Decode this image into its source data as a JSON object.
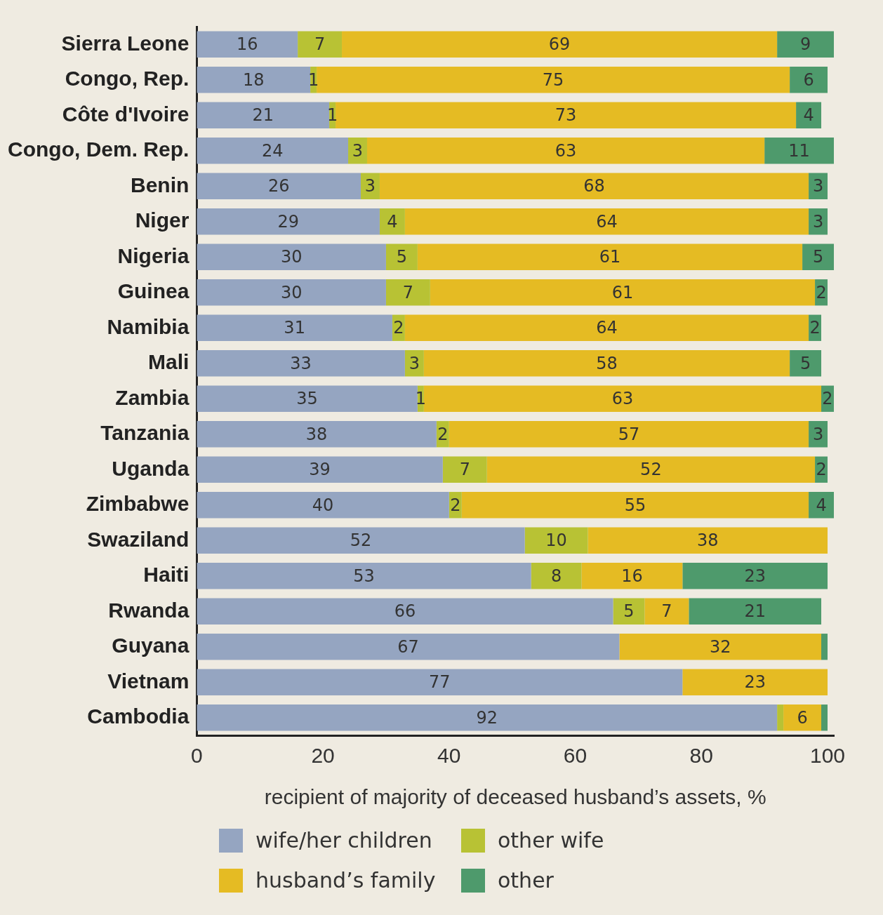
{
  "chart_data": {
    "type": "bar",
    "orientation": "horizontal",
    "stacked": true,
    "categories": [
      "Sierra Leone",
      "Congo, Rep.",
      "Côte d'Ivoire",
      "Congo, Dem. Rep.",
      "Benin",
      "Niger",
      "Nigeria",
      "Guinea",
      "Namibia",
      "Mali",
      "Zambia",
      "Tanzania",
      "Uganda",
      "Zimbabwe",
      "Swaziland",
      "Haiti",
      "Rwanda",
      "Guyana",
      "Vietnam",
      "Cambodia"
    ],
    "xlabel": "recipient of majority of deceased husband’s assets, %",
    "xlim": [
      0,
      101
    ],
    "xticks": [
      0,
      20,
      40,
      60,
      80,
      100
    ],
    "grid": false,
    "legend": "bottom",
    "series": [
      {
        "name": "wife/her children",
        "color": "#95a5c1",
        "values": [
          16,
          18,
          21,
          24,
          26,
          29,
          30,
          30,
          31,
          33,
          35,
          38,
          39,
          40,
          52,
          53,
          66,
          67,
          77,
          92
        ],
        "value_labels": [
          "16",
          "18",
          "21",
          "24",
          "26",
          "29",
          "30",
          "30",
          "31",
          "33",
          "35",
          "38",
          "39",
          "40",
          "52",
          "53",
          "66",
          "67",
          "77",
          "92"
        ]
      },
      {
        "name": "other wife",
        "color": "#b8c234",
        "values": [
          7,
          1,
          1,
          3,
          3,
          4,
          5,
          7,
          2,
          3,
          1,
          2,
          7,
          2,
          10,
          8,
          5,
          null,
          null,
          1
        ],
        "value_labels": [
          "7",
          "1",
          "1",
          "3",
          "3",
          "4",
          "5",
          "7",
          "2",
          "3",
          "1",
          "2",
          "7",
          "2",
          "10",
          "8",
          "5",
          null,
          null,
          null
        ]
      },
      {
        "name": "husband’s family",
        "color": "#e5bb23",
        "values": [
          69,
          75,
          73,
          63,
          68,
          64,
          61,
          61,
          64,
          58,
          63,
          57,
          52,
          55,
          38,
          16,
          7,
          32,
          23,
          6
        ],
        "value_labels": [
          "69",
          "75",
          "73",
          "63",
          "68",
          "64",
          "61",
          "61",
          "64",
          "58",
          "63",
          "57",
          "52",
          "55",
          "38",
          "16",
          "7",
          "32",
          "23",
          "6"
        ]
      },
      {
        "name": "other",
        "color": "#4e9a6c",
        "values": [
          9,
          6,
          4,
          11,
          3,
          3,
          5,
          2,
          2,
          5,
          2,
          3,
          2,
          4,
          null,
          23,
          21,
          1,
          null,
          1
        ],
        "value_labels": [
          "9",
          "6",
          "4",
          "11",
          "3",
          "3",
          "5",
          "2",
          "2",
          "5",
          "2",
          "3",
          "2",
          "4",
          null,
          "23",
          "21",
          null,
          null,
          null
        ]
      }
    ]
  }
}
